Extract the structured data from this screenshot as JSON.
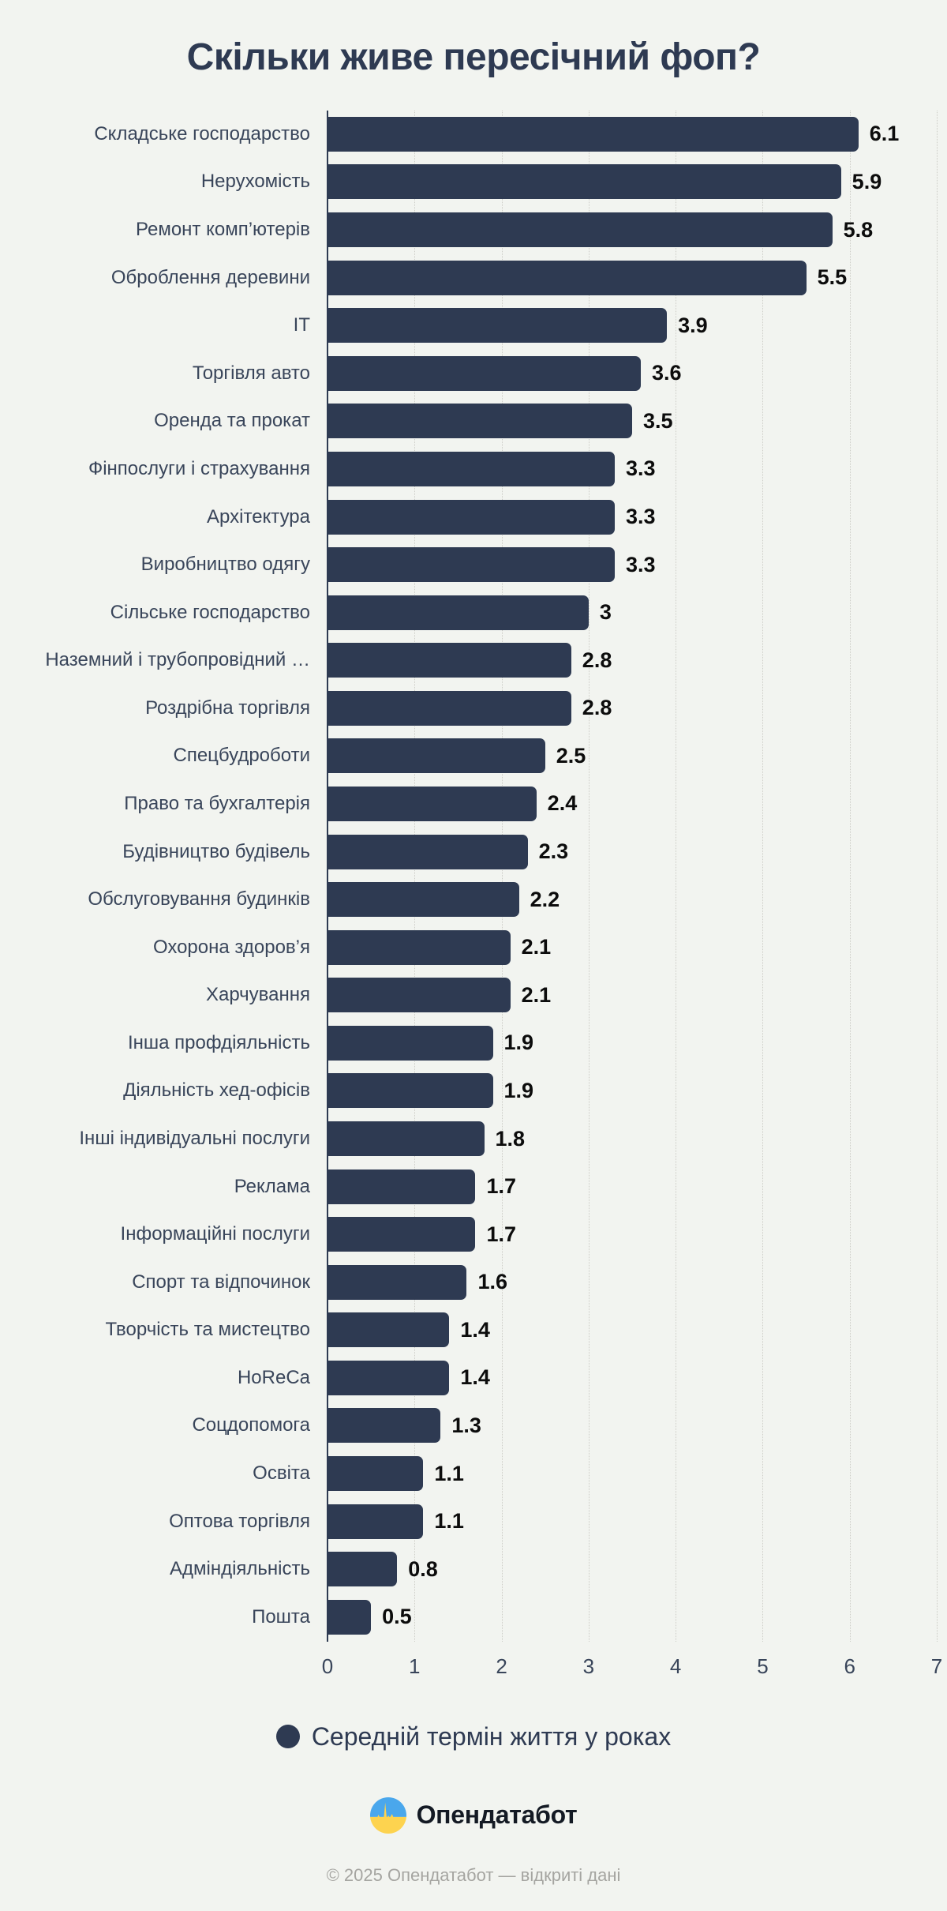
{
  "title": "Скільки живе пересічний фоп?",
  "colors": {
    "background": "#f2f4f0",
    "bar": "#2e3a52",
    "title_text": "#2e3a52",
    "category_text": "#39455a",
    "value_text": "#0c0c0c",
    "gridline": "#cdcdc7",
    "footer_text": "#a5a5a1",
    "logo_blue": "#4aa7ec",
    "logo_yellow": "#fdd34f"
  },
  "chart_data": {
    "type": "bar",
    "orientation": "horizontal",
    "title": "Скільки живе пересічний фоп?",
    "xlabel": "",
    "ylabel": "",
    "xlim": [
      0,
      7
    ],
    "xticks": [
      "0",
      "1",
      "2",
      "3",
      "4",
      "5",
      "6",
      "7"
    ],
    "grid": "vertical-dotted",
    "legend_position": "bottom-center",
    "categories": [
      "Складське господарство",
      "Нерухомість",
      "Ремонт комп’ютерів",
      "Оброблення деревини",
      "ІТ",
      "Торгівля авто",
      "Оренда та прокат",
      "Фінпослуги і страхування",
      "Архітектура",
      "Виробництво одягу",
      "Сільське господарство",
      "Наземний і трубопровідний …",
      "Роздрібна торгівля",
      "Спецбудроботи",
      "Право та бухгалтерія",
      "Будівництво будівель",
      "Обслуговування будинків",
      "Охорона здоров’я",
      "Харчування",
      "Інша профдіяльність",
      "Діяльність хед-офісів",
      "Інші індивідуальні послуги",
      "Реклама",
      "Інформаційні послуги",
      "Спорт та відпочинок",
      "Творчість та мистецтво",
      "HoReCa",
      "Соцдопомога",
      "Освіта",
      "Оптова торгівля",
      "Адміндіяльність",
      "Пошта"
    ],
    "values": [
      6.1,
      5.9,
      5.8,
      5.5,
      3.9,
      3.6,
      3.5,
      3.3,
      3.3,
      3.3,
      3,
      2.8,
      2.8,
      2.5,
      2.4,
      2.3,
      2.2,
      2.1,
      2.1,
      1.9,
      1.9,
      1.8,
      1.7,
      1.7,
      1.6,
      1.4,
      1.4,
      1.3,
      1.1,
      1.1,
      0.8,
      0.5
    ],
    "value_labels": [
      "6.1",
      "5.9",
      "5.8",
      "5.5",
      "3.9",
      "3.6",
      "3.5",
      "3.3",
      "3.3",
      "3.3",
      "3",
      "2.8",
      "2.8",
      "2.5",
      "2.4",
      "2.3",
      "2.2",
      "2.1",
      "2.1",
      "1.9",
      "1.9",
      "1.8",
      "1.7",
      "1.7",
      "1.6",
      "1.4",
      "1.4",
      "1.3",
      "1.1",
      "1.1",
      "0.8",
      "0.5"
    ]
  },
  "legend": {
    "label": "Середній термін життя у роках"
  },
  "branding": {
    "logo_text": "Опендатабот",
    "footer": "© 2025 Опендатабот — відкриті дані"
  }
}
